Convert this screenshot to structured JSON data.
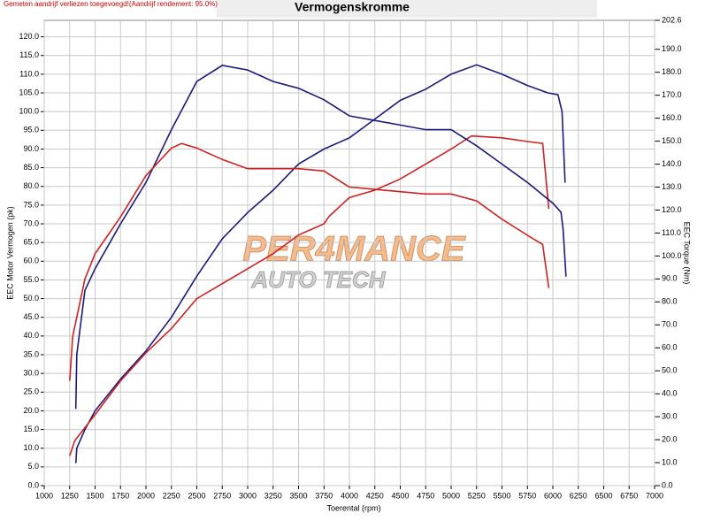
{
  "chart_data": {
    "type": "line",
    "note": "Gemeten aandrijf verliezen toegevoegd!(Aandrijf rendement: 95.0%)",
    "title": "Vermogenskromme",
    "watermark": [
      "PER4MANCE",
      "AUTO TECH"
    ],
    "x_label": "Toerental (rpm)",
    "y_label": "EEC Motor Vermogen (pk)",
    "y2_label": "EEC Torque (Nm)",
    "xlim": [
      1000,
      7000
    ],
    "xticks": [
      1000,
      1250,
      1500,
      1750,
      2000,
      2250,
      2500,
      2750,
      3000,
      3250,
      3500,
      3750,
      4000,
      4250,
      4500,
      4750,
      5000,
      5250,
      5500,
      5750,
      6000,
      6250,
      6500,
      6750,
      7000
    ],
    "ylim": [
      0,
      124.4
    ],
    "yticks": [
      {
        "value": 0,
        "label": "0.0"
      },
      {
        "value": 5,
        "label": "5.0"
      },
      {
        "value": 10,
        "label": "10.0"
      },
      {
        "value": 15,
        "label": "15.0"
      },
      {
        "value": 20,
        "label": "20.0"
      },
      {
        "value": 25,
        "label": "25.0"
      },
      {
        "value": 30,
        "label": "30.0"
      },
      {
        "value": 35,
        "label": "35.0"
      },
      {
        "value": 40,
        "label": "40.0"
      },
      {
        "value": 45,
        "label": "45.0"
      },
      {
        "value": 50,
        "label": "50.0"
      },
      {
        "value": 55,
        "label": "55.0"
      },
      {
        "value": 60,
        "label": "60.0"
      },
      {
        "value": 65,
        "label": "65.0"
      },
      {
        "value": 70,
        "label": "70.0"
      },
      {
        "value": 75,
        "label": "75.0"
      },
      {
        "value": 80,
        "label": "80.0"
      },
      {
        "value": 85,
        "label": "85.0"
      },
      {
        "value": 90,
        "label": "90.0"
      },
      {
        "value": 95,
        "label": "95.0"
      },
      {
        "value": 100,
        "label": "100.0"
      },
      {
        "value": 105,
        "label": "105.0"
      },
      {
        "value": 110,
        "label": "110.0"
      },
      {
        "value": 115,
        "label": "115.0"
      },
      {
        "value": 120,
        "label": "120.0"
      }
    ],
    "y2lim": [
      0,
      202.6
    ],
    "y2ticks": [
      {
        "value": 0,
        "label": "0.0"
      },
      {
        "value": 10,
        "label": "10.0"
      },
      {
        "value": 20,
        "label": "20.0"
      },
      {
        "value": 30,
        "label": "30.0"
      },
      {
        "value": 40,
        "label": "40.0"
      },
      {
        "value": 50,
        "label": "50.0"
      },
      {
        "value": 60,
        "label": "60.0"
      },
      {
        "value": 70,
        "label": "70.0"
      },
      {
        "value": 80,
        "label": "80.0"
      },
      {
        "value": 90,
        "label": "90.0"
      },
      {
        "value": 100,
        "label": "100.0"
      },
      {
        "value": 110,
        "label": "110.0"
      },
      {
        "value": 120,
        "label": "120.0"
      },
      {
        "value": 130,
        "label": "130.0"
      },
      {
        "value": 140,
        "label": "140.0"
      },
      {
        "value": 150,
        "label": "150.0"
      },
      {
        "value": 160,
        "label": "160.0"
      },
      {
        "value": 170,
        "label": "170.0"
      },
      {
        "value": 180,
        "label": "180.0"
      },
      {
        "value": 190,
        "label": "190.0"
      },
      202.6
    ],
    "grid": true,
    "series": [
      {
        "color": "#1a1a7a",
        "axis": "y",
        "x": [
          1310,
          1320,
          1400,
          1500,
          1750,
          2000,
          2250,
          2500,
          2750,
          3000,
          3250,
          3500,
          3750,
          4000,
          4250,
          4500,
          4750,
          5000,
          5250,
          5500,
          5750,
          5950,
          6050,
          6090,
          6120
        ],
        "values": [
          6,
          10,
          15,
          20,
          28.5,
          36,
          45,
          56,
          66,
          73,
          79,
          86,
          90,
          93,
          98,
          103,
          106,
          110,
          112.5,
          110,
          107,
          105,
          104.5,
          100,
          81
        ]
      },
      {
        "color": "#cc2222",
        "axis": "y",
        "x": [
          1250,
          1300,
          1500,
          1750,
          2000,
          2250,
          2500,
          2750,
          3000,
          3250,
          3500,
          3750,
          3800,
          4000,
          4250,
          4500,
          4750,
          5000,
          5200,
          5500,
          5750,
          5900,
          5960
        ],
        "values": [
          8,
          12,
          19,
          28,
          35.5,
          42,
          50,
          54,
          58,
          62,
          67,
          70,
          72,
          77,
          79,
          82,
          86,
          90,
          93.5,
          93,
          92,
          91.5,
          74
        ]
      },
      {
        "color": "#1a1a7a",
        "axis": "y2",
        "x": [
          1310,
          1320,
          1400,
          1500,
          1750,
          2000,
          2250,
          2500,
          2750,
          3000,
          3250,
          3500,
          3750,
          4000,
          4250,
          4500,
          4750,
          5000,
          5250,
          5500,
          5750,
          6000,
          6080,
          6100,
          6130
        ],
        "values": [
          33.4,
          57,
          85,
          94.5,
          114,
          132,
          155,
          176,
          183,
          181,
          176,
          173,
          168,
          161,
          159,
          157,
          155,
          155,
          148,
          140,
          132,
          123,
          119,
          112,
          91
        ]
      },
      {
        "color": "#cc2222",
        "axis": "y2",
        "x": [
          1250,
          1280,
          1400,
          1500,
          1750,
          2000,
          2250,
          2350,
          2500,
          2750,
          3000,
          3250,
          3500,
          3750,
          4000,
          4250,
          4500,
          4750,
          5000,
          5250,
          5500,
          5750,
          5900,
          5960
        ],
        "values": [
          45.6,
          65,
          90,
          101,
          117,
          135,
          147,
          149,
          147,
          142,
          138,
          138,
          138,
          137,
          130,
          129,
          128,
          127,
          127,
          124,
          116,
          109,
          105,
          86
        ]
      }
    ]
  }
}
